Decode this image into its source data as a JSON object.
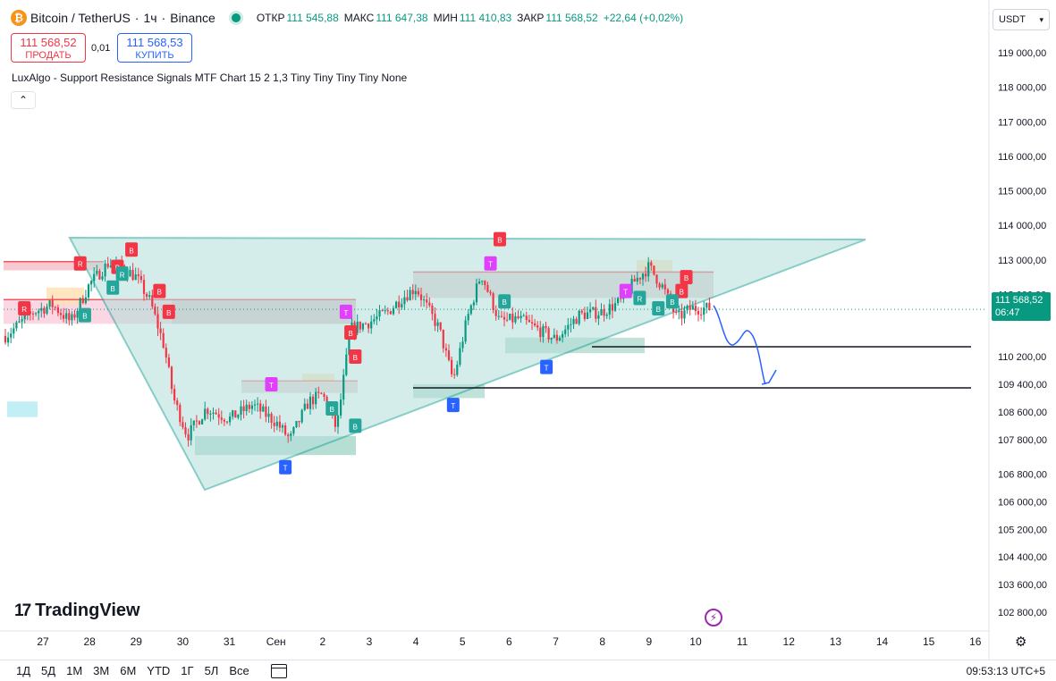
{
  "header": {
    "symbol": "Bitcoin / TetherUS",
    "separator": "·",
    "interval": "1ч",
    "exchange": "Binance",
    "ohlc": [
      {
        "label": "ОТКР",
        "value": "111 545,88"
      },
      {
        "label": "МАКС",
        "value": "111 647,38"
      },
      {
        "label": "МИН",
        "value": "111 410,83"
      },
      {
        "label": "ЗАКР",
        "value": "111 568,52"
      }
    ],
    "change": "+22,64 (+0,02%)"
  },
  "trade": {
    "sell_price": "111 568,52",
    "sell_label": "ПРОДАТЬ",
    "spread": "0,01",
    "buy_price": "111 568,53",
    "buy_label": "КУПИТЬ"
  },
  "indicator": {
    "label": "LuxAlgo - Support Resistance Signals MTF Chart 15 2 1,3 Tiny Tiny Tiny Tiny None",
    "collapse_icon": "chevron-up-icon"
  },
  "currency": {
    "value": "USDT",
    "icon": "chevron-down-icon"
  },
  "price_tag": {
    "price": "111 568,52",
    "countdown": "06:47"
  },
  "logo": {
    "text": "TradingView"
  },
  "bottom_bar": {
    "ranges": [
      "1Д",
      "5Д",
      "1М",
      "3М",
      "6М",
      "YTD",
      "1Г",
      "5Л",
      "Все"
    ],
    "clock": "09:53:13 UTC+5"
  },
  "colors": {
    "up": "#089981",
    "down": "#f23645",
    "wedge_fill": "#b2dfdb",
    "wedge_stroke": "#26a69a",
    "support_line": "#131722",
    "projection": "#2962ff"
  },
  "chart_data": {
    "type": "candlestick",
    "title": "Bitcoin / TetherUS · 1ч · Binance",
    "y_ticks": [
      "119 000,00",
      "118 000,00",
      "117 000,00",
      "116 000,00",
      "115 000,00",
      "114 000,00",
      "113 000,00",
      "112 000,00",
      "110 200,00",
      "109 400,00",
      "108 600,00",
      "107 800,00",
      "106 800,00",
      "106 000,00",
      "105 200,00",
      "104 400,00",
      "103 600,00",
      "102 800,00"
    ],
    "y_tick_values": [
      119000,
      118000,
      117000,
      116000,
      115000,
      114000,
      113000,
      112000,
      110200,
      109400,
      108600,
      107800,
      106800,
      106000,
      105200,
      104400,
      103600,
      102800
    ],
    "x_ticks": [
      "27",
      "28",
      "29",
      "30",
      "31",
      "Сен",
      "2",
      "3",
      "4",
      "5",
      "6",
      "7",
      "8",
      "9",
      "10",
      "11",
      "12",
      "13",
      "14",
      "15",
      "16"
    ],
    "ylim": [
      102400,
      119600
    ],
    "last_price": 111568.52,
    "anchors": [
      {
        "day": 26.2,
        "price": 110800
      },
      {
        "day": 26.8,
        "price": 111500
      },
      {
        "day": 27.2,
        "price": 111700
      },
      {
        "day": 27.6,
        "price": 111200
      },
      {
        "day": 28.0,
        "price": 112300
      },
      {
        "day": 28.4,
        "price": 112900
      },
      {
        "day": 28.7,
        "price": 112800
      },
      {
        "day": 29.0,
        "price": 112500
      },
      {
        "day": 29.3,
        "price": 111800
      },
      {
        "day": 29.6,
        "price": 110500
      },
      {
        "day": 29.8,
        "price": 109000
      },
      {
        "day": 30.1,
        "price": 107900
      },
      {
        "day": 30.5,
        "price": 108700
      },
      {
        "day": 31.0,
        "price": 108400
      },
      {
        "day": 31.5,
        "price": 108800
      },
      {
        "day": 32.0,
        "price": 108300
      },
      {
        "day": 32.3,
        "price": 107800
      },
      {
        "day": 32.7,
        "price": 108900
      },
      {
        "day": 33.0,
        "price": 109100
      },
      {
        "day": 33.3,
        "price": 108100
      },
      {
        "day": 33.6,
        "price": 111000
      },
      {
        "day": 34.0,
        "price": 111200
      },
      {
        "day": 34.4,
        "price": 111500
      },
      {
        "day": 34.7,
        "price": 111900
      },
      {
        "day": 35.0,
        "price": 112200
      },
      {
        "day": 35.5,
        "price": 111000
      },
      {
        "day": 35.8,
        "price": 109500
      },
      {
        "day": 36.1,
        "price": 111300
      },
      {
        "day": 36.4,
        "price": 112600
      },
      {
        "day": 36.8,
        "price": 111200
      },
      {
        "day": 37.2,
        "price": 111300
      },
      {
        "day": 37.6,
        "price": 111000
      },
      {
        "day": 38.0,
        "price": 110700
      },
      {
        "day": 38.5,
        "price": 111400
      },
      {
        "day": 39.0,
        "price": 111500
      },
      {
        "day": 39.4,
        "price": 111800
      },
      {
        "day": 39.7,
        "price": 112400
      },
      {
        "day": 40.0,
        "price": 112800
      },
      {
        "day": 40.3,
        "price": 112200
      },
      {
        "day": 40.6,
        "price": 111300
      },
      {
        "day": 40.9,
        "price": 111600
      }
    ],
    "signal_labels": [
      {
        "text": "R",
        "day": 26.6,
        "price": 111600,
        "color": "#f23645"
      },
      {
        "text": "R",
        "day": 27.8,
        "price": 112900,
        "color": "#f23645"
      },
      {
        "text": "B",
        "day": 28.9,
        "price": 113300,
        "color": "#f23645"
      },
      {
        "text": "B",
        "day": 28.6,
        "price": 112800,
        "color": "#f23645"
      },
      {
        "text": "B",
        "day": 29.5,
        "price": 112100,
        "color": "#f23645"
      },
      {
        "text": "B",
        "day": 29.7,
        "price": 111500,
        "color": "#f23645"
      },
      {
        "text": "B",
        "day": 33.6,
        "price": 110900,
        "color": "#f23645"
      },
      {
        "text": "B",
        "day": 33.7,
        "price": 110200,
        "color": "#f23645"
      },
      {
        "text": "B",
        "day": 36.8,
        "price": 113600,
        "color": "#f23645"
      },
      {
        "text": "B",
        "day": 40.8,
        "price": 112500,
        "color": "#f23645"
      },
      {
        "text": "B",
        "day": 40.7,
        "price": 112100,
        "color": "#f23645"
      },
      {
        "text": "T",
        "day": 33.5,
        "price": 111500,
        "color": "#e040fb"
      },
      {
        "text": "T",
        "day": 31.9,
        "price": 109400,
        "color": "#e040fb"
      },
      {
        "text": "T",
        "day": 36.6,
        "price": 112900,
        "color": "#e040fb"
      },
      {
        "text": "T",
        "day": 39.5,
        "price": 112100,
        "color": "#e040fb"
      },
      {
        "text": "T",
        "day": 32.2,
        "price": 107000,
        "color": "#2962ff"
      },
      {
        "text": "T",
        "day": 35.8,
        "price": 108800,
        "color": "#2962ff"
      },
      {
        "text": "T",
        "day": 37.8,
        "price": 109900,
        "color": "#2962ff"
      },
      {
        "text": "B",
        "day": 27.9,
        "price": 111400,
        "color": "#26a69a"
      },
      {
        "text": "B",
        "day": 28.5,
        "price": 112200,
        "color": "#26a69a"
      },
      {
        "text": "R",
        "day": 28.7,
        "price": 112600,
        "color": "#26a69a"
      },
      {
        "text": "B",
        "day": 33.2,
        "price": 108700,
        "color": "#26a69a"
      },
      {
        "text": "B",
        "day": 33.7,
        "price": 108200,
        "color": "#26a69a"
      },
      {
        "text": "B",
        "day": 36.9,
        "price": 111800,
        "color": "#26a69a"
      },
      {
        "text": "R",
        "day": 39.8,
        "price": 111900,
        "color": "#26a69a"
      },
      {
        "text": "B",
        "day": 40.5,
        "price": 111800,
        "color": "#26a69a"
      },
      {
        "text": "B",
        "day": 40.2,
        "price": 111600,
        "color": "#26a69a"
      }
    ]
  }
}
